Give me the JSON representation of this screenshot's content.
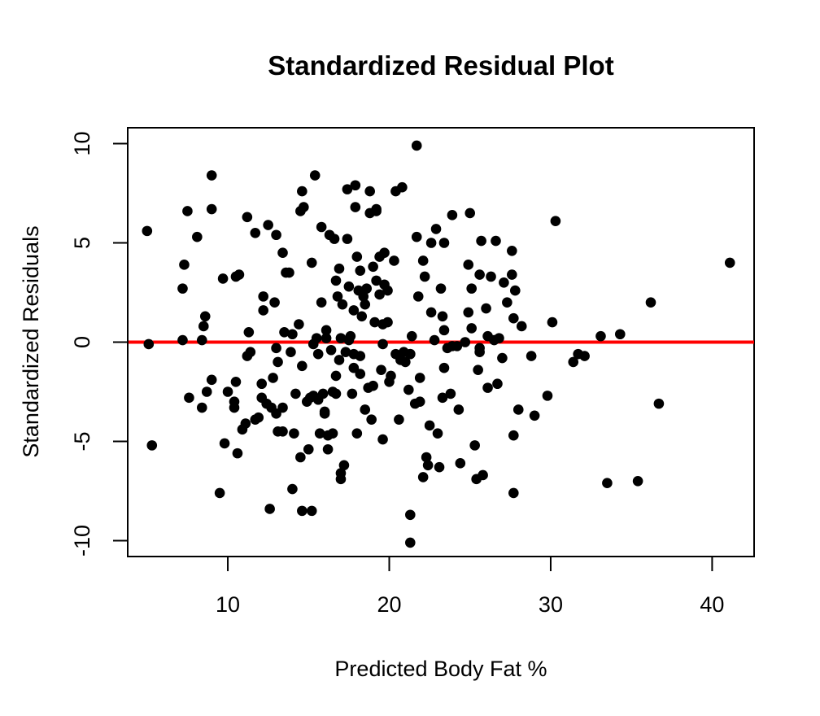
{
  "chart_data": {
    "type": "scatter",
    "title": "Standardized Residual Plot",
    "xlabel": "Predicted Body Fat %",
    "ylabel": "Standardized Residuals",
    "xlim": [
      3.8,
      42.6
    ],
    "ylim": [
      -10.8,
      10.8
    ],
    "x_ticks": [
      10,
      20,
      30,
      40
    ],
    "y_ticks": [
      -10,
      -5,
      0,
      5,
      10
    ],
    "grid": false,
    "legend": "none",
    "reference_line": {
      "y": 0,
      "color": "#ff0000"
    },
    "point_color": "#000000",
    "line_color": "#ff0000",
    "series": [
      {
        "points": [
          [
            5.0,
            5.6
          ],
          [
            5.1,
            -0.1
          ],
          [
            5.3,
            -5.2
          ],
          [
            7.2,
            0.1
          ],
          [
            7.2,
            2.7
          ],
          [
            7.3,
            3.9
          ],
          [
            7.5,
            6.6
          ],
          [
            7.6,
            -2.8
          ],
          [
            8.1,
            5.3
          ],
          [
            8.4,
            0.1
          ],
          [
            8.4,
            -3.3
          ],
          [
            8.5,
            0.8
          ],
          [
            8.6,
            1.3
          ],
          [
            8.7,
            -2.5
          ],
          [
            9.0,
            8.4
          ],
          [
            9.0,
            6.7
          ],
          [
            9.0,
            -1.9
          ],
          [
            9.5,
            -7.6
          ],
          [
            9.7,
            3.2
          ],
          [
            9.8,
            -5.1
          ],
          [
            10.0,
            -2.5
          ],
          [
            10.4,
            -3.3
          ],
          [
            10.4,
            -3.0
          ],
          [
            10.5,
            -2.0
          ],
          [
            10.5,
            3.3
          ],
          [
            10.6,
            -5.6
          ],
          [
            10.7,
            3.4
          ],
          [
            10.9,
            -4.4
          ],
          [
            11.1,
            -4.1
          ],
          [
            11.2,
            -0.7
          ],
          [
            11.2,
            6.3
          ],
          [
            11.3,
            0.5
          ],
          [
            11.4,
            -0.5
          ],
          [
            11.7,
            5.5
          ],
          [
            11.7,
            -3.9
          ],
          [
            11.9,
            -3.8
          ],
          [
            12.1,
            -2.1
          ],
          [
            12.1,
            -2.8
          ],
          [
            12.2,
            2.3
          ],
          [
            12.2,
            1.6
          ],
          [
            12.4,
            -3.1
          ],
          [
            12.5,
            5.9
          ],
          [
            12.6,
            -8.4
          ],
          [
            12.7,
            -3.3
          ],
          [
            12.8,
            -1.8
          ],
          [
            12.9,
            2.0
          ],
          [
            13.0,
            5.4
          ],
          [
            13.0,
            -0.3
          ],
          [
            13.0,
            -3.6
          ],
          [
            13.1,
            -1.0
          ],
          [
            13.1,
            -4.5
          ],
          [
            13.4,
            -3.3
          ],
          [
            13.4,
            -4.5
          ],
          [
            13.4,
            4.5
          ],
          [
            13.5,
            0.5
          ],
          [
            13.6,
            3.5
          ],
          [
            13.8,
            3.5
          ],
          [
            13.9,
            -0.5
          ],
          [
            14.0,
            0.4
          ],
          [
            14.0,
            -7.4
          ],
          [
            14.1,
            -4.6
          ],
          [
            14.2,
            -2.6
          ],
          [
            14.4,
            0.9
          ],
          [
            14.5,
            -5.8
          ],
          [
            14.5,
            6.6
          ],
          [
            14.6,
            -1.2
          ],
          [
            14.6,
            -8.5
          ],
          [
            14.6,
            7.6
          ],
          [
            14.7,
            6.8
          ],
          [
            14.9,
            -3.0
          ],
          [
            15.0,
            -5.4
          ],
          [
            15.1,
            -2.8
          ],
          [
            15.2,
            4.0
          ],
          [
            15.2,
            -8.5
          ],
          [
            15.3,
            -2.7
          ],
          [
            15.3,
            -0.1
          ],
          [
            15.4,
            8.4
          ],
          [
            15.5,
            0.2
          ],
          [
            15.6,
            -2.9
          ],
          [
            15.6,
            -0.6
          ],
          [
            15.7,
            -4.6
          ],
          [
            15.8,
            2.0
          ],
          [
            15.8,
            5.8
          ],
          [
            15.9,
            -2.6
          ],
          [
            16.0,
            -3.5
          ],
          [
            16.0,
            -3.6
          ],
          [
            16.1,
            0.6
          ],
          [
            16.1,
            0.2
          ],
          [
            16.2,
            -5.4
          ],
          [
            16.2,
            -4.7
          ],
          [
            16.3,
            5.4
          ],
          [
            16.4,
            -0.4
          ],
          [
            16.5,
            -2.5
          ],
          [
            16.5,
            -4.6
          ],
          [
            16.6,
            5.2
          ],
          [
            16.7,
            -1.7
          ],
          [
            16.7,
            -2.6
          ],
          [
            16.7,
            3.1
          ],
          [
            16.8,
            2.3
          ],
          [
            16.9,
            3.7
          ],
          [
            16.9,
            -0.9
          ],
          [
            17.0,
            0.2
          ],
          [
            17.0,
            -6.6
          ],
          [
            17.0,
            -6.9
          ],
          [
            17.1,
            1.9
          ],
          [
            17.2,
            -6.2
          ],
          [
            17.3,
            -0.5
          ],
          [
            17.4,
            7.7
          ],
          [
            17.4,
            5.2
          ],
          [
            17.5,
            0.1
          ],
          [
            17.5,
            2.8
          ],
          [
            17.6,
            0.3
          ],
          [
            17.7,
            -2.6
          ],
          [
            17.8,
            -0.6
          ],
          [
            17.8,
            1.6
          ],
          [
            17.8,
            -1.3
          ],
          [
            17.9,
            6.8
          ],
          [
            17.9,
            7.9
          ],
          [
            18.0,
            4.3
          ],
          [
            18.0,
            -4.6
          ],
          [
            18.1,
            2.6
          ],
          [
            18.2,
            3.6
          ],
          [
            18.2,
            -0.7
          ],
          [
            18.2,
            -1.6
          ],
          [
            18.3,
            1.3
          ],
          [
            18.4,
            2.3
          ],
          [
            18.5,
            1.9
          ],
          [
            18.5,
            -3.4
          ],
          [
            18.6,
            2.7
          ],
          [
            18.7,
            -2.3
          ],
          [
            18.8,
            7.6
          ],
          [
            18.8,
            6.5
          ],
          [
            18.9,
            -3.9
          ],
          [
            19.0,
            3.8
          ],
          [
            19.0,
            -2.2
          ],
          [
            19.1,
            1.0
          ],
          [
            19.2,
            6.7
          ],
          [
            19.2,
            6.6
          ],
          [
            19.2,
            3.1
          ],
          [
            19.4,
            2.4
          ],
          [
            19.4,
            4.3
          ],
          [
            19.5,
            -1.4
          ],
          [
            19.6,
            -0.1
          ],
          [
            19.6,
            0.9
          ],
          [
            19.6,
            -4.9
          ],
          [
            19.7,
            2.9
          ],
          [
            19.7,
            4.5
          ],
          [
            19.9,
            2.6
          ],
          [
            19.9,
            1.0
          ],
          [
            20.0,
            -2.0
          ],
          [
            20.1,
            -1.7
          ],
          [
            20.3,
            4.1
          ],
          [
            20.4,
            7.6
          ],
          [
            20.4,
            -0.6
          ],
          [
            20.6,
            -3.9
          ],
          [
            20.7,
            -0.9
          ],
          [
            20.8,
            7.8
          ],
          [
            20.9,
            -0.5
          ],
          [
            21.0,
            -1.0
          ],
          [
            21.2,
            -2.4
          ],
          [
            21.3,
            -0.6
          ],
          [
            21.3,
            -0.6
          ],
          [
            21.3,
            -8.7
          ],
          [
            21.3,
            -10.1
          ],
          [
            21.4,
            0.3
          ],
          [
            21.6,
            -3.1
          ],
          [
            21.7,
            5.3
          ],
          [
            21.7,
            9.9
          ],
          [
            21.8,
            2.3
          ],
          [
            21.9,
            -1.8
          ],
          [
            21.9,
            -3.0
          ],
          [
            22.1,
            4.1
          ],
          [
            22.1,
            -6.8
          ],
          [
            22.2,
            3.3
          ],
          [
            22.3,
            -5.8
          ],
          [
            22.4,
            -6.2
          ],
          [
            22.5,
            -4.2
          ],
          [
            22.6,
            1.5
          ],
          [
            22.6,
            5.0
          ],
          [
            22.8,
            0.1
          ],
          [
            22.9,
            5.7
          ],
          [
            23.0,
            -4.6
          ],
          [
            23.1,
            -6.3
          ],
          [
            23.2,
            2.7
          ],
          [
            23.3,
            1.3
          ],
          [
            23.3,
            -2.8
          ],
          [
            23.4,
            5.0
          ],
          [
            23.4,
            0.6
          ],
          [
            23.4,
            -1.3
          ],
          [
            23.6,
            -0.3
          ],
          [
            23.8,
            -2.6
          ],
          [
            23.9,
            -0.2
          ],
          [
            23.9,
            6.4
          ],
          [
            24.2,
            -0.2
          ],
          [
            24.3,
            -3.4
          ],
          [
            24.4,
            -6.1
          ],
          [
            24.7,
            0.0
          ],
          [
            24.9,
            1.5
          ],
          [
            24.9,
            3.9
          ],
          [
            25.0,
            6.5
          ],
          [
            25.1,
            2.7
          ],
          [
            25.1,
            0.7
          ],
          [
            25.3,
            -5.2
          ],
          [
            25.4,
            -6.9
          ],
          [
            25.5,
            -1.4
          ],
          [
            25.6,
            -0.5
          ],
          [
            25.6,
            -0.3
          ],
          [
            25.6,
            3.4
          ],
          [
            25.7,
            5.1
          ],
          [
            25.8,
            -6.7
          ],
          [
            26.0,
            1.7
          ],
          [
            26.1,
            -2.3
          ],
          [
            26.1,
            0.3
          ],
          [
            26.3,
            3.3
          ],
          [
            26.5,
            0.1
          ],
          [
            26.6,
            5.1
          ],
          [
            26.7,
            -2.1
          ],
          [
            26.8,
            0.2
          ],
          [
            27.0,
            -0.8
          ],
          [
            27.1,
            3.0
          ],
          [
            27.3,
            2.0
          ],
          [
            27.6,
            3.4
          ],
          [
            27.6,
            4.6
          ],
          [
            27.7,
            1.2
          ],
          [
            27.7,
            -4.7
          ],
          [
            27.7,
            -7.6
          ],
          [
            27.8,
            2.6
          ],
          [
            28.0,
            -3.4
          ],
          [
            28.2,
            0.8
          ],
          [
            28.8,
            -0.7
          ],
          [
            29.0,
            -3.7
          ],
          [
            29.8,
            -2.7
          ],
          [
            30.1,
            1.0
          ],
          [
            30.3,
            6.1
          ],
          [
            31.4,
            -1.0
          ],
          [
            31.7,
            -0.6
          ],
          [
            32.1,
            -0.7
          ],
          [
            33.1,
            0.3
          ],
          [
            33.5,
            -7.1
          ],
          [
            34.3,
            0.4
          ],
          [
            35.4,
            -7.0
          ],
          [
            36.2,
            2.0
          ],
          [
            36.7,
            -3.1
          ],
          [
            41.1,
            4.0
          ]
        ]
      }
    ]
  }
}
